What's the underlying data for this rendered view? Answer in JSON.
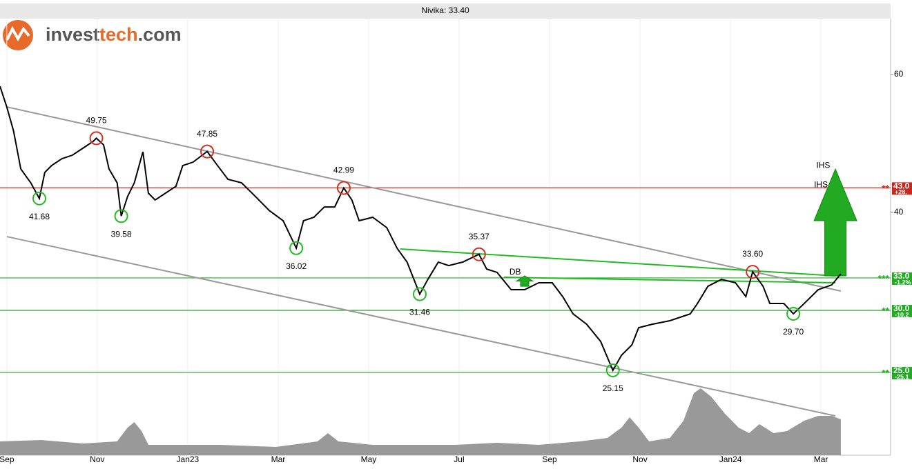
{
  "logo": {
    "parts": [
      "invest",
      "tech",
      ".com"
    ]
  },
  "chart_data": {
    "type": "line",
    "title": "Nivika: 33.40",
    "log_y": true,
    "grid": true,
    "xlim": [
      -0.15,
      19.54
    ],
    "ylim": [
      19.6,
      70.56
    ],
    "yticks": [
      40,
      60
    ],
    "xticks": [
      {
        "value": 0,
        "label": "Sep"
      },
      {
        "value": 2,
        "label": "Nov"
      },
      {
        "value": 4,
        "label": "Jan23"
      },
      {
        "value": 6,
        "label": "Mar"
      },
      {
        "value": 8,
        "label": "May"
      },
      {
        "value": 10,
        "label": "Jul"
      },
      {
        "value": 12,
        "label": "Sep"
      },
      {
        "value": 14,
        "label": "Nov"
      },
      {
        "value": 16,
        "label": "Jan24"
      },
      {
        "value": 18,
        "label": "Mar"
      }
    ],
    "series": [
      {
        "color": "#000000",
        "x": [
          -0.15,
          0,
          0.15,
          0.31,
          0.53,
          0.72,
          0.84,
          0.99,
          1.22,
          1.45,
          1.68,
          1.91,
          1.98,
          2.14,
          2.26,
          2.44,
          2.53,
          2.67,
          2.82,
          3.01,
          3.13,
          3.28,
          3.51,
          3.74,
          3.89,
          4.12,
          4.43,
          4.66,
          4.89,
          5.19,
          5.5,
          5.8,
          6.11,
          6.4,
          6.56,
          6.79,
          7.02,
          7.25,
          7.45,
          7.63,
          7.79,
          8.09,
          8.4,
          8.63,
          8.85,
          9.13,
          9.31,
          9.54,
          9.77,
          10.08,
          10.44,
          10.61,
          10.84,
          11.15,
          11.45,
          11.76,
          12.06,
          12.29,
          12.52,
          12.82,
          13.13,
          13.4,
          13.59,
          13.82,
          13.97,
          14.27,
          14.66,
          15.11,
          15.27,
          15.5,
          15.8,
          16.11,
          16.34,
          16.49,
          16.72,
          16.87,
          17.18,
          17.39,
          17.63,
          17.94,
          18.24,
          18.44
        ],
        "values": [
          57.96,
          54.54,
          50.81,
          45.45,
          43.64,
          41.68,
          44.99,
          45.91,
          46.85,
          47.33,
          48.3,
          49.29,
          49.75,
          48.79,
          45.45,
          43.64,
          39.58,
          41.91,
          43.64,
          47.81,
          42.34,
          41.49,
          42.34,
          43.2,
          45.91,
          46.38,
          47.85,
          45.91,
          44.09,
          43.64,
          41.91,
          40.24,
          39.04,
          36.02,
          39.04,
          39.44,
          40.65,
          40.65,
          42.99,
          41.49,
          39.04,
          39.44,
          38.26,
          36.0,
          34.57,
          31.46,
          32.86,
          34.57,
          34.22,
          34.57,
          35.37,
          33.87,
          33.54,
          31.88,
          31.88,
          32.53,
          32.53,
          31.24,
          29.69,
          28.8,
          27.38,
          25.15,
          26.29,
          27.1,
          28.51,
          28.8,
          29.1,
          29.69,
          30.61,
          32.2,
          32.86,
          32.53,
          31.24,
          33.6,
          32.2,
          30.61,
          30.61,
          29.7,
          30.61,
          31.88,
          32.33,
          33.4
        ]
      }
    ],
    "extremes": [
      {
        "color": "#d03020",
        "side": "above",
        "x": [
          1.98,
          4.43,
          7.45,
          10.44,
          16.49
        ],
        "values": [
          49.75,
          47.85,
          42.99,
          35.37,
          33.6
        ],
        "value_labels": [
          "49.75",
          "47.85",
          "42.99",
          "35.37",
          "33.60"
        ]
      },
      {
        "color": "#22bb22",
        "side": "below",
        "x": [
          0.72,
          2.53,
          6.4,
          9.13,
          13.4,
          17.39
        ],
        "values": [
          41.68,
          39.58,
          36.02,
          31.46,
          25.15,
          29.7
        ],
        "value_labels": [
          "41.68",
          "39.58",
          "36.02",
          "31.46",
          "25.15",
          "29.70"
        ]
      }
    ],
    "trend_lines": [
      {
        "color": "#999999",
        "x": [
          0,
          18.44
        ],
        "values": [
          54.54,
          31.75
        ]
      },
      {
        "color": "#999999",
        "x": [
          0,
          18.32
        ],
        "values": [
          37.26,
          22.0
        ]
      },
      {
        "color": "#22bb22",
        "x": [
          8.7,
          18.32
        ],
        "values": [
          35.93,
          33.2
        ]
      },
      {
        "color": "#22bb22",
        "x": [
          10.99,
          18.32
        ],
        "values": [
          33.06,
          32.53
        ]
      }
    ],
    "levels": [
      {
        "value": 43,
        "label": "43.0",
        "change": "+28.",
        "stars": "**",
        "color": "#c8281e"
      },
      {
        "value": 33,
        "label": "33.0",
        "change": "-1.2%",
        "stars": "***",
        "color": "#22aa22"
      },
      {
        "value": 30,
        "label": "30.0",
        "change": "-10.2",
        "stars": "**",
        "color": "#22aa22"
      },
      {
        "value": 25,
        "label": "25.0",
        "change": "-25.1",
        "stars": "**",
        "color": "#22aa22"
      }
    ],
    "arrows": [
      {
        "x": 18.32,
        "from": 33.2,
        "to": 45.45,
        "color": "#22aa22"
      },
      {
        "x": 11.45,
        "from": 32.2,
        "to": 33.2,
        "color": "#22aa22"
      }
    ],
    "patterns": [
      {
        "text": "IHS",
        "x": 18.05,
        "value": 45.9
      },
      {
        "text": "IHS",
        "x": 18.0,
        "value": 43.34
      },
      {
        "text": "DB",
        "x": 11.24,
        "value": 33.54
      }
    ],
    "volume": {
      "color": "#999999",
      "ylim": [
        0,
        100
      ],
      "x": [
        -0.15,
        0.76,
        1.68,
        2.44,
        2.67,
        2.82,
        2.98,
        3.13,
        3.82,
        4.73,
        5.95,
        6.87,
        7.1,
        7.33,
        8.09,
        9.01,
        9.92,
        10.84,
        11.76,
        12.67,
        13.28,
        13.59,
        13.77,
        13.97,
        14.2,
        14.66,
        14.96,
        15.19,
        15.34,
        15.57,
        15.88,
        16.18,
        16.41,
        16.64,
        16.95,
        17.25,
        17.63,
        17.94,
        18.24,
        18.44
      ],
      "values": [
        20,
        22,
        17,
        20,
        40,
        48,
        35,
        15,
        15,
        15,
        12,
        20,
        32,
        20,
        15,
        15,
        15,
        18,
        15,
        20,
        25,
        40,
        55,
        40,
        20,
        25,
        50,
        90,
        97,
        85,
        60,
        40,
        32,
        45,
        32,
        35,
        50,
        57,
        57,
        52
      ]
    }
  }
}
